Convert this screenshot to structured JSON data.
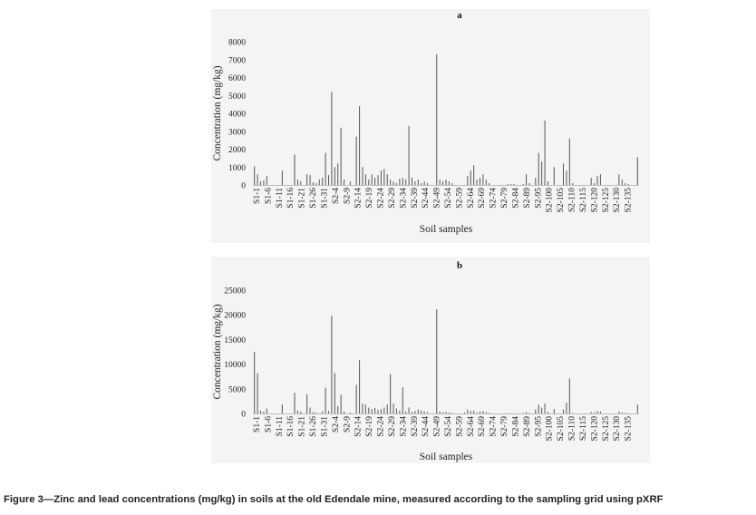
{
  "caption": "Figure 3—Zinc and lead concentrations (mg/kg) in soils at the old Edendale mine, measured according to the sampling grid using pXRF",
  "chart_data": [
    {
      "type": "bar",
      "panel_label": "a",
      "xlabel": "Soil samples",
      "ylabel": "Concentration (mg/kg)",
      "ylim": [
        0,
        8000
      ],
      "yticks": [
        "0",
        "1000",
        "2000",
        "3000",
        "4000",
        "5000",
        "6000",
        "7000",
        "8000"
      ],
      "tick_categories": [
        "S1-1",
        "S1-6",
        "S1-11",
        "S1-16",
        "S1-21",
        "S1-26",
        "S1-31",
        "S2-4",
        "S2-9",
        "S2-14",
        "S2-19",
        "S2-24",
        "S2-29",
        "S2-34",
        "S2-39",
        "S2-44",
        "S2-49",
        "S2-54",
        "S2-59",
        "S2-64",
        "S2-69",
        "S2-74",
        "S2-79",
        "S2-84",
        "S2-89",
        "S2-95",
        "S2-100",
        "S2-105",
        "S2-110",
        "S2-115",
        "S2-120",
        "S2-125",
        "S2-130",
        "S2-135"
      ],
      "values": [
        1050,
        600,
        200,
        250,
        500,
        0,
        0,
        0,
        0,
        800,
        0,
        0,
        0,
        1700,
        300,
        200,
        0,
        600,
        550,
        150,
        100,
        300,
        400,
        1800,
        550,
        5200,
        1000,
        1200,
        3200,
        300,
        0,
        200,
        0,
        2700,
        4400,
        1000,
        600,
        300,
        600,
        400,
        550,
        800,
        900,
        600,
        300,
        200,
        100,
        350,
        400,
        300,
        3300,
        400,
        200,
        300,
        100,
        200,
        100,
        0,
        0,
        7300,
        300,
        200,
        300,
        200,
        100,
        0,
        0,
        0,
        0,
        500,
        800,
        1100,
        300,
        400,
        600,
        300,
        100,
        0,
        0,
        0,
        0,
        0,
        50,
        50,
        50,
        0,
        0,
        50,
        600,
        100,
        0,
        400,
        1800,
        1300,
        3600,
        200,
        0,
        1000,
        0,
        0,
        1200,
        800,
        2600,
        100,
        0,
        0,
        0,
        0,
        0,
        400,
        100,
        500,
        600,
        0,
        0,
        0,
        0,
        0,
        600,
        300,
        100,
        50,
        0,
        0,
        1550
      ],
      "series_name": "Zn"
    },
    {
      "type": "bar",
      "panel_label": "b",
      "xlabel": "Soil samples",
      "ylabel": "Concentration (mg/kg)",
      "ylim": [
        0,
        25000
      ],
      "yticks": [
        "0",
        "5000",
        "10000",
        "15000",
        "20000",
        "25000"
      ],
      "tick_categories": [
        "S1-1",
        "S1-6",
        "S1-11",
        "S1-16",
        "S1-21",
        "S1-26",
        "S1-31",
        "S2-4",
        "S2-9",
        "S2-14",
        "S2-19",
        "S2-24",
        "S2-29",
        "S2-34",
        "S2-39",
        "S2-44",
        "S2-49",
        "S2-54",
        "S2-59",
        "S2-64",
        "S2-69",
        "S2-74",
        "S2-79",
        "S2-84",
        "S2-89",
        "S2-95",
        "S2-100",
        "S2-105",
        "S2-110",
        "S2-115",
        "S2-120",
        "S2-125",
        "S2-130",
        "S2-135"
      ],
      "values": [
        12500,
        8200,
        600,
        400,
        1000,
        0,
        0,
        0,
        0,
        1800,
        0,
        0,
        0,
        4200,
        600,
        400,
        0,
        3900,
        1200,
        300,
        200,
        0,
        400,
        5200,
        500,
        19800,
        8200,
        1500,
        3800,
        400,
        0,
        200,
        0,
        5800,
        10800,
        2000,
        1800,
        1200,
        900,
        1100,
        700,
        900,
        1200,
        1800,
        8000,
        2000,
        1000,
        600,
        5300,
        400,
        1200,
        300,
        500,
        800,
        600,
        400,
        300,
        0,
        0,
        21100,
        400,
        200,
        300,
        200,
        100,
        0,
        0,
        0,
        200,
        800,
        500,
        600,
        200,
        400,
        500,
        300,
        100,
        0,
        0,
        0,
        0,
        0,
        50,
        50,
        50,
        0,
        0,
        100,
        300,
        100,
        0,
        800,
        1800,
        1200,
        2000,
        300,
        0,
        900,
        0,
        0,
        800,
        2200,
        7100,
        100,
        0,
        0,
        0,
        0,
        0,
        300,
        200,
        500,
        400,
        0,
        0,
        0,
        0,
        0,
        400,
        200,
        100,
        50,
        0,
        0,
        1800
      ],
      "series_name": "Pb"
    }
  ]
}
